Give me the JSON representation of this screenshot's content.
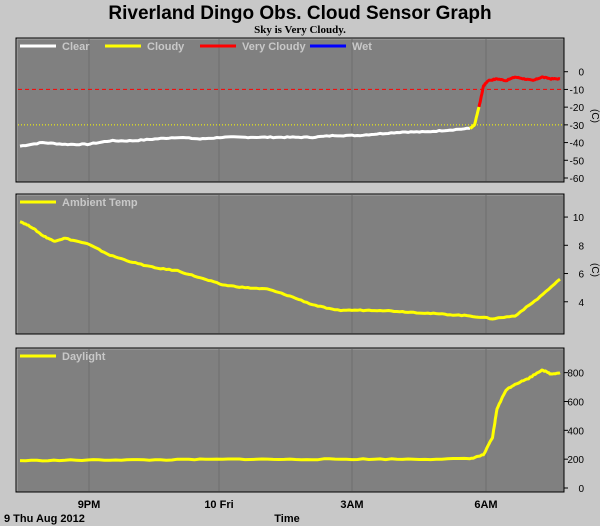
{
  "title": "Riverland Dingo Obs. Cloud Sensor Graph",
  "subtitle": "Sky is Very Cloudy.",
  "date_label": "9 Thu Aug 2012",
  "colors": {
    "background": "#c8c8c8",
    "plot_bg": "#808080",
    "clear": "#ffffff",
    "cloudy": "#ffff00",
    "very_cloudy": "#ff0000",
    "wet": "#0000ff"
  },
  "chart_data": [
    {
      "type": "line",
      "legend": [
        "Clear",
        "Cloudy",
        "Very Cloudy",
        "Wet"
      ],
      "unit_label": "(C)",
      "ylim": [
        -60,
        10
      ],
      "yticks": [
        0,
        -10,
        -20,
        -30,
        -40,
        -50,
        -60
      ],
      "xlabel": "Time",
      "xticks": [
        "9PM",
        "10 Fri",
        "3AM",
        "6AM"
      ],
      "thresholds": [
        {
          "value": -10,
          "color": "#ff0000",
          "style": "dashed"
        },
        {
          "value": -30,
          "color": "#ffff00",
          "style": "dotted"
        }
      ],
      "series": [
        {
          "name": "Clear",
          "color": "#ffffff",
          "x": [
            0,
            0.5,
            1.0,
            1.5,
            2.0,
            2.5,
            3.0,
            3.5,
            4.0,
            4.5,
            5.0,
            5.5,
            6.0,
            6.5,
            7.0,
            7.5,
            8.0,
            8.5,
            9.0,
            9.5,
            10.0
          ],
          "y": [
            -42,
            -40,
            -41,
            -41,
            -39,
            -39,
            -38,
            -37,
            -38,
            -37,
            -37,
            -37,
            -37,
            -37,
            -36,
            -36,
            -35,
            -34,
            -34,
            -33,
            -32
          ]
        },
        {
          "name": "Cloudy",
          "color": "#ffff00",
          "x": [
            10.0,
            10.1,
            10.2
          ],
          "y": [
            -32,
            -30,
            -20
          ]
        },
        {
          "name": "Very Cloudy",
          "color": "#ff0000",
          "x": [
            10.2,
            10.3,
            10.4,
            10.6,
            10.8,
            11.0,
            11.2,
            11.4,
            11.6,
            11.8,
            12.0
          ],
          "y": [
            -20,
            -8,
            -5,
            -4,
            -5,
            -3,
            -4,
            -5,
            -3,
            -4,
            -4
          ]
        }
      ]
    },
    {
      "type": "line",
      "legend": [
        "Ambient Temp"
      ],
      "unit_label": "(C)",
      "ylim": [
        2,
        10.5
      ],
      "yticks": [
        10,
        8,
        6,
        4
      ],
      "xlabel": "Time",
      "xticks": [
        "9PM",
        "10 Fri",
        "3AM",
        "6AM"
      ],
      "series": [
        {
          "name": "Ambient Temp",
          "color": "#ffff00",
          "x": [
            0,
            0.25,
            0.5,
            0.75,
            1.0,
            1.5,
            2.0,
            2.5,
            3.0,
            3.5,
            4.0,
            4.5,
            5.0,
            5.5,
            6.0,
            6.5,
            7.0,
            7.5,
            8.0,
            8.5,
            9.0,
            9.5,
            10.0,
            10.5,
            11.0,
            11.5,
            12.0
          ],
          "y": [
            9.7,
            9.3,
            8.7,
            8.3,
            8.5,
            8.1,
            7.3,
            6.8,
            6.4,
            6.2,
            5.7,
            5.2,
            5.0,
            4.9,
            4.4,
            3.8,
            3.4,
            3.4,
            3.4,
            3.3,
            3.2,
            3.1,
            3.0,
            2.8,
            3.0,
            4.2,
            5.6
          ]
        }
      ]
    },
    {
      "type": "line",
      "legend": [
        "Daylight"
      ],
      "unit_label": "",
      "ylim": [
        0,
        860
      ],
      "yticks": [
        800,
        600,
        400,
        200,
        0
      ],
      "xlabel": "Time",
      "xticks": [
        "9PM",
        "10 Fri",
        "3AM",
        "6AM"
      ],
      "series": [
        {
          "name": "Daylight",
          "color": "#ffff00",
          "x": [
            0,
            1.0,
            2.0,
            3.0,
            4.0,
            5.0,
            6.0,
            7.0,
            8.0,
            9.0,
            10.0,
            10.3,
            10.5,
            10.6,
            10.8,
            11.0,
            11.3,
            11.6,
            11.8,
            12.0
          ],
          "y": [
            190,
            192,
            195,
            195,
            198,
            200,
            198,
            200,
            200,
            200,
            203,
            230,
            350,
            550,
            680,
            720,
            760,
            820,
            790,
            800
          ]
        }
      ]
    }
  ]
}
